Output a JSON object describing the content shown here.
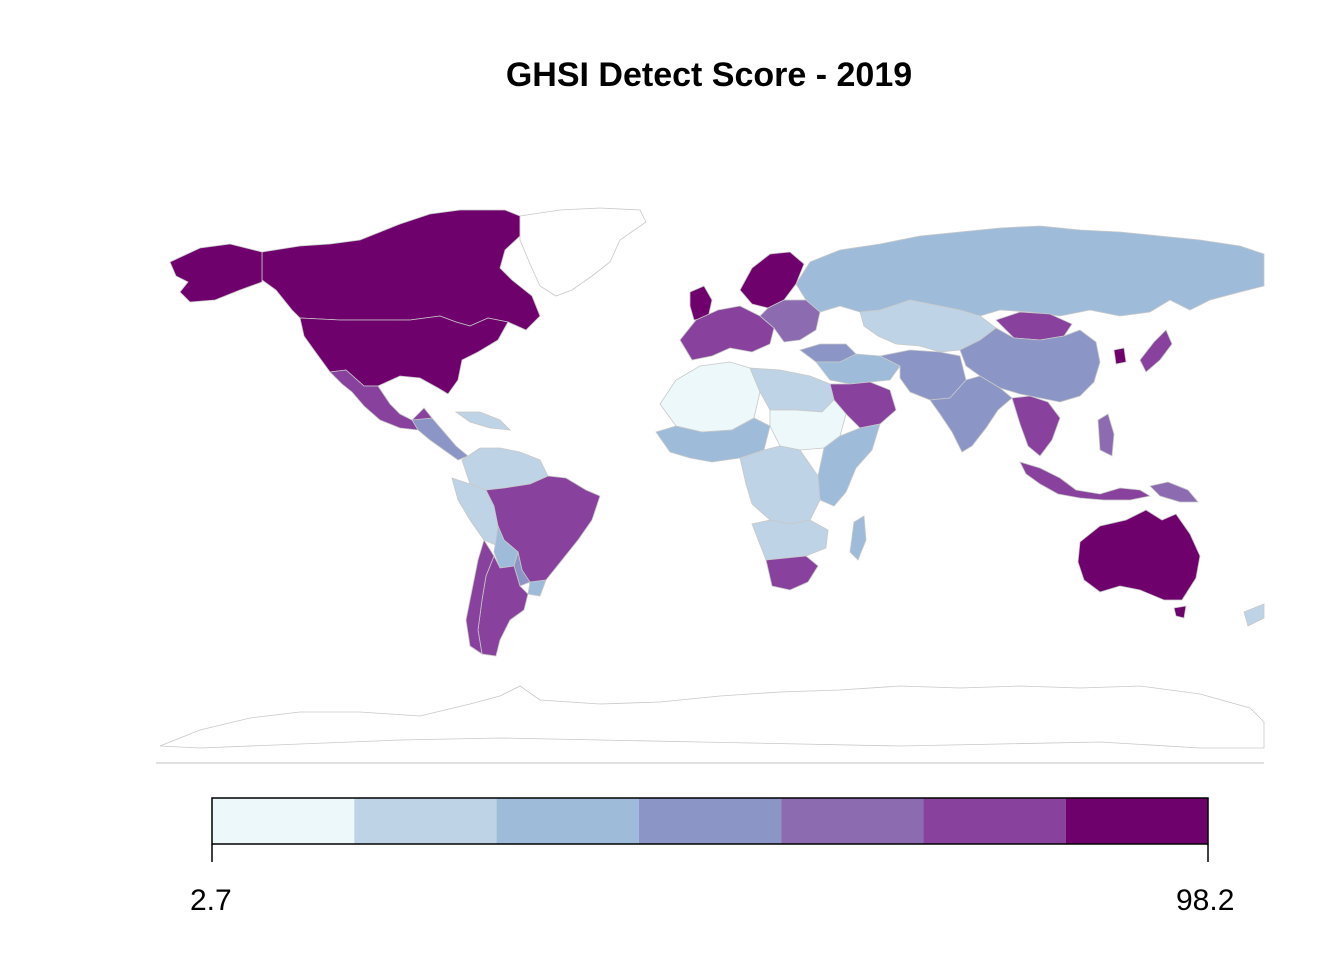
{
  "title": "GHSI Detect Score - 2019",
  "legend": {
    "min_label": "2.7",
    "max_label": "98.2",
    "bins": [
      {
        "color": "#edf8fb"
      },
      {
        "color": "#bfd3e6"
      },
      {
        "color": "#9ebcda"
      },
      {
        "color": "#8c96c6"
      },
      {
        "color": "#8c6bb1"
      },
      {
        "color": "#88419d"
      },
      {
        "color": "#6e016b"
      }
    ]
  },
  "colors": {
    "border": "#c8c8c8",
    "no_data": "#ffffff",
    "frame_line": "#c0c0c0"
  },
  "regions": [
    {
      "name": "canada",
      "bin": 7
    },
    {
      "name": "united-states",
      "bin": 7
    },
    {
      "name": "alaska",
      "bin": 7
    },
    {
      "name": "greenland",
      "bin": 0
    },
    {
      "name": "mexico",
      "bin": 6
    },
    {
      "name": "central-america",
      "bin": 4
    },
    {
      "name": "caribbean",
      "bin": 2
    },
    {
      "name": "colombia-venezuela",
      "bin": 2
    },
    {
      "name": "peru-ecuador",
      "bin": 2
    },
    {
      "name": "brazil",
      "bin": 6
    },
    {
      "name": "bolivia",
      "bin": 3
    },
    {
      "name": "paraguay",
      "bin": 4
    },
    {
      "name": "argentina",
      "bin": 6
    },
    {
      "name": "chile",
      "bin": 6
    },
    {
      "name": "uruguay",
      "bin": 3
    },
    {
      "name": "western-europe",
      "bin": 6
    },
    {
      "name": "uk",
      "bin": 7
    },
    {
      "name": "scandinavia",
      "bin": 7
    },
    {
      "name": "eastern-europe",
      "bin": 5
    },
    {
      "name": "russia",
      "bin": 3
    },
    {
      "name": "kazakhstan-central-asia",
      "bin": 2
    },
    {
      "name": "turkey",
      "bin": 4
    },
    {
      "name": "middle-east",
      "bin": 3
    },
    {
      "name": "saudi-arabia",
      "bin": 6
    },
    {
      "name": "north-africa-west",
      "bin": 1
    },
    {
      "name": "libya-egypt",
      "bin": 2
    },
    {
      "name": "west-africa",
      "bin": 3
    },
    {
      "name": "sudan",
      "bin": 1
    },
    {
      "name": "east-africa",
      "bin": 3
    },
    {
      "name": "central-africa",
      "bin": 2
    },
    {
      "name": "southern-africa",
      "bin": 2
    },
    {
      "name": "south-africa",
      "bin": 6
    },
    {
      "name": "madagascar",
      "bin": 3
    },
    {
      "name": "mongolia",
      "bin": 6
    },
    {
      "name": "china",
      "bin": 4
    },
    {
      "name": "south-korea",
      "bin": 7
    },
    {
      "name": "japan",
      "bin": 6
    },
    {
      "name": "india",
      "bin": 4
    },
    {
      "name": "iran-pakistan",
      "bin": 4
    },
    {
      "name": "southeast-asia",
      "bin": 6
    },
    {
      "name": "indonesia",
      "bin": 6
    },
    {
      "name": "philippines",
      "bin": 5
    },
    {
      "name": "papua",
      "bin": 5
    },
    {
      "name": "australia",
      "bin": 7
    },
    {
      "name": "new-zealand",
      "bin": 2
    },
    {
      "name": "antarctica",
      "bin": 0
    }
  ]
}
